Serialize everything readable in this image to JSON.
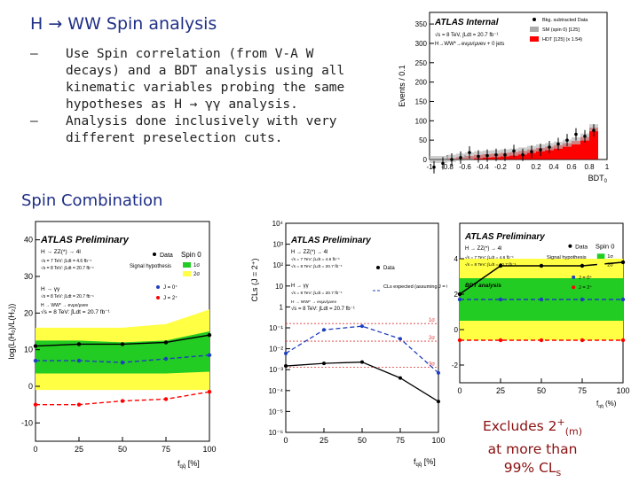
{
  "slide": {
    "title": "H → WW Spin analysis",
    "bullets": [
      "Use Spin correlation (from V-A W decays) and a BDT analysis using all kinematic variables probing the same hypotheses as H → γγ analysis.",
      "Analysis done inclusively with very different preselection cuts."
    ],
    "bullet_marker": "–",
    "section_heading": "Spin Combination",
    "excludes": {
      "line1": "Excludes 2",
      "sup": "+",
      "sub": "(m)",
      "line2": "at more than",
      "line3": "99% CL",
      "line3_sub": "s"
    }
  },
  "colors": {
    "title": "#1f2f86",
    "accent_red": "#8a1010",
    "band_green": "#22cc22",
    "band_yellow": "#ffff44",
    "signal_red": "#ff0000"
  },
  "chart_data": [
    {
      "type": "bar",
      "title": "ATLAS Internal",
      "ylabel": "Events / 0.1",
      "xlabel": "BDT",
      "xlabel_sub": "0",
      "legend": [
        "Bkg. subtracted Data",
        "SM (spin 0) [125]",
        "HDT [125] (x 1.54)"
      ],
      "info": [
        "√s = 8 TeV, ∫Ldt = 20.7 fb⁻¹",
        "H→WW*→eνμν/μνeν + 0 jets"
      ],
      "x_ticks": [
        "-1",
        "-0.8",
        "-0.6",
        "-0.4",
        "-0.2",
        "0",
        "0.2",
        "0.4",
        "0.6",
        "0.8",
        "1"
      ],
      "y_ticks": [
        "0",
        "50",
        "100",
        "150",
        "200",
        "250",
        "300",
        "350"
      ],
      "ylim": [
        0,
        380
      ],
      "bins_x": [
        -0.95,
        -0.85,
        -0.75,
        -0.65,
        -0.55,
        -0.45,
        -0.35,
        -0.25,
        -0.15,
        -0.05,
        0.05,
        0.15,
        0.25,
        0.35,
        0.45,
        0.55,
        0.65,
        0.75,
        0.85
      ],
      "signal": [
        0,
        0,
        3,
        6,
        9,
        12,
        14,
        15,
        17,
        19,
        22,
        26,
        30,
        33,
        37,
        42,
        48,
        58,
        82
      ],
      "data": [
        -20,
        -10,
        0,
        5,
        18,
        8,
        10,
        12,
        12,
        22,
        12,
        20,
        25,
        32,
        40,
        50,
        65,
        60,
        75
      ]
    },
    {
      "type": "line",
      "title": "ATLAS Preliminary",
      "ylabel": "log(L(H₀)/L(H₂))",
      "xlabel": "f",
      "xlabel_sub": "qq̄",
      "xlabel_unit": "[%]",
      "x": [
        0,
        25,
        50,
        75,
        100
      ],
      "x_ticks": [
        "0",
        "25",
        "50",
        "75",
        "100"
      ],
      "y_ticks": [
        "-10",
        "0",
        "10",
        "20",
        "30",
        "40"
      ],
      "ylim": [
        -15,
        45
      ],
      "legend_title": "Spin 0",
      "legend": [
        "Data",
        "1σ",
        "2σ",
        "J = 0⁺",
        "J = 2⁺"
      ],
      "legend_caption": "Signal hypothesis",
      "info": [
        "H → ZZ(*) → 4l",
        "√s = 7 TeV: ∫Ldt = 4.6 fb⁻¹",
        "√s = 8 TeV: ∫Ldt = 20.7 fb⁻¹",
        "H → γγ",
        "√s = 8 TeV: ∫Ldt = 20.7 fb⁻¹",
        "H → WW* → eνμν/μνeν",
        "√s = 8 TeV: ∫Ldt = 20.7 fb⁻¹"
      ],
      "series": [
        {
          "name": "Data",
          "values": [
            11,
            11.5,
            11.5,
            12,
            14
          ]
        },
        {
          "name": "J = 0⁺",
          "values": [
            7,
            7,
            6.5,
            7.5,
            8.5
          ]
        },
        {
          "name": "J = 2⁺",
          "values": [
            -5,
            -5,
            -4,
            -3.5,
            -1.5
          ]
        }
      ],
      "band_1s": [
        [
          3.5,
          12.5
        ],
        [
          3.5,
          12.5
        ],
        [
          3.5,
          12
        ],
        [
          3.5,
          12.5
        ],
        [
          4,
          15
        ]
      ],
      "band_2s": [
        [
          -1,
          16
        ],
        [
          -1,
          16
        ],
        [
          -1,
          16
        ],
        [
          -1,
          17
        ],
        [
          -1,
          21
        ]
      ]
    },
    {
      "type": "line",
      "ylabel": "CLs (J = 2⁺)",
      "xlabel": "f",
      "xlabel_sub": "qq̄",
      "xlabel_unit": "[%]",
      "title": "ATLAS Preliminary",
      "log_y": true,
      "x": [
        0,
        25,
        50,
        75,
        100
      ],
      "x_ticks": [
        "0",
        "25",
        "50",
        "75",
        "100"
      ],
      "y_ticks": [
        "10⁻⁶",
        "10⁻⁵",
        "10⁻⁴",
        "10⁻³",
        "10⁻²",
        "10⁻¹",
        "1",
        "10",
        "10²",
        "10³",
        "10⁴"
      ],
      "legend": [
        "Data",
        "CLs expected (assuming J = 0⁺)"
      ],
      "sigma_lines": [
        "1σ",
        "2σ",
        "3σ"
      ],
      "info": [
        "H → ZZ(*) → 4l",
        "√s = 7 TeV: ∫Ldt = 4.6 fb⁻¹",
        "√s = 8 TeV: ∫Ldt = 20.7 fb⁻¹",
        "H → γγ",
        "√s = 8 TeV: ∫Ldt = 20.7 fb⁻¹",
        "H → WW* → eνμν/μνeν",
        "√s = 8 TeV: ∫Ldt = 20.7 fb⁻¹"
      ],
      "series": [
        {
          "name": "Data",
          "values": [
            0.0015,
            0.002,
            0.0023,
            0.0004,
            3e-05
          ]
        },
        {
          "name": "CLs expected",
          "values": [
            0.006,
            0.08,
            0.12,
            0.03,
            0.0007
          ]
        }
      ]
    },
    {
      "type": "line",
      "title": "ATLAS Preliminary",
      "xlabel": "f",
      "xlabel_sub": "qq̄",
      "xlabel_unit": "(%)",
      "subtitle": "BDT analysis",
      "x": [
        0,
        25,
        50,
        75,
        100
      ],
      "x_ticks": [
        "0",
        "25",
        "50",
        "75",
        "100"
      ],
      "y_ticks": [
        "-2",
        "0",
        "2",
        "4"
      ],
      "ylim": [
        -3,
        6
      ],
      "legend_title": "Spin 0",
      "legend": [
        "Data",
        "1σ",
        "2σ",
        "J = 0⁺",
        "J = 2⁺"
      ],
      "legend_caption": "Signal hypothesis",
      "info": [
        "H → ZZ(*) → 4l",
        "√s = 7 TeV: ∫Ldt = 4.6 fb⁻¹",
        "√s = 8 TeV: ∫Ldt = 20.7 fb⁻¹"
      ],
      "series": [
        {
          "name": "Data",
          "values": [
            2,
            3.6,
            3.6,
            3.6,
            3.8
          ]
        },
        {
          "name": "J = 0⁺",
          "values": [
            1.7,
            1.7,
            1.7,
            1.7,
            1.7
          ]
        },
        {
          "name": "J = 2⁺",
          "values": [
            -0.6,
            -0.6,
            -0.6,
            -0.6,
            -0.6
          ]
        }
      ],
      "band_1s": [
        [
          0.5,
          2.9
        ],
        [
          0.5,
          2.9
        ],
        [
          0.5,
          2.9
        ],
        [
          0.5,
          2.9
        ],
        [
          0.5,
          2.9
        ]
      ],
      "band_2s": [
        [
          -0.6,
          4
        ],
        [
          -0.6,
          4
        ],
        [
          -0.6,
          4
        ],
        [
          -0.6,
          4
        ],
        [
          -0.6,
          4
        ]
      ]
    }
  ]
}
